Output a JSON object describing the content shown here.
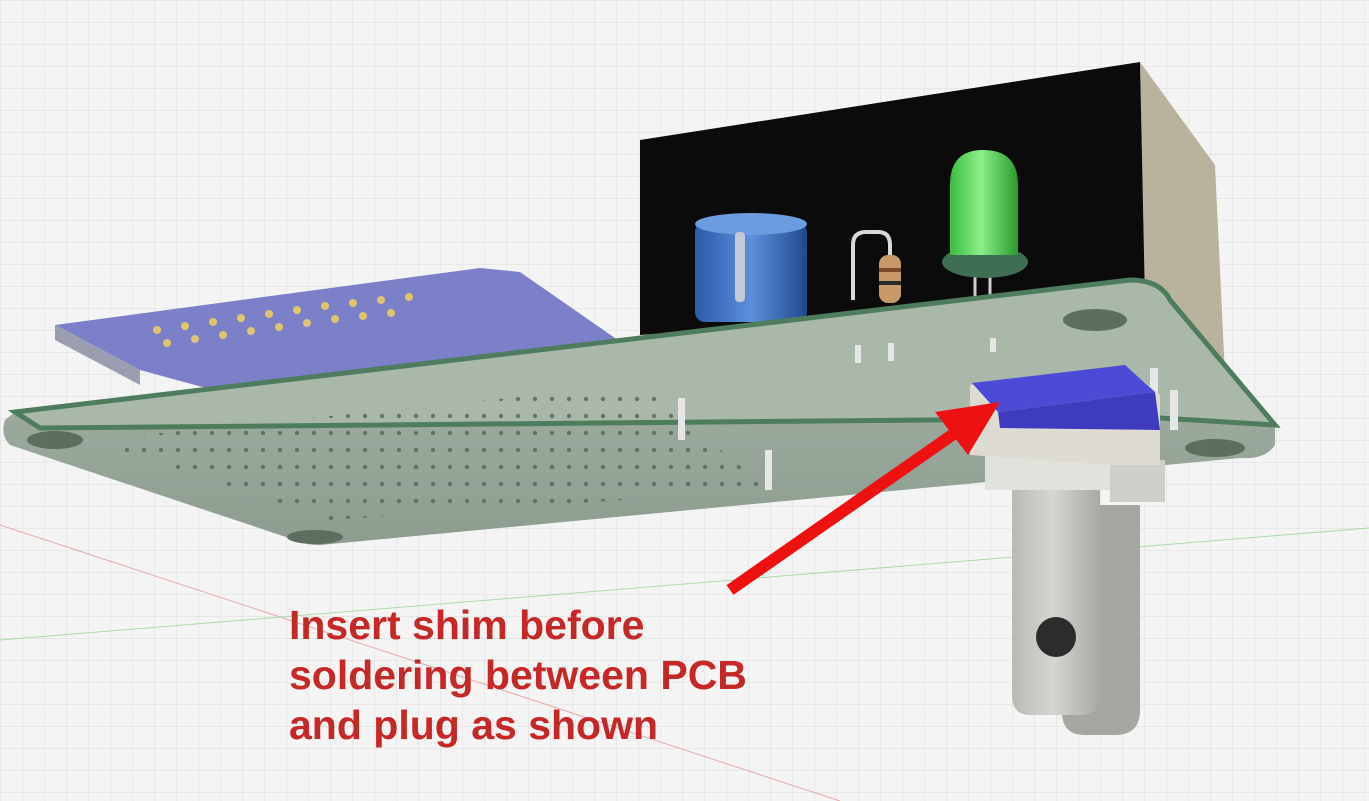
{
  "annotation": {
    "lines": [
      "Insert shim before",
      "soldering between PCB",
      "and plug as shown"
    ],
    "text_color": "#c62727",
    "arrow_color": "#ee1111"
  },
  "colors": {
    "background": "#f4f4f4",
    "grid": "#d9d9d9",
    "pcb": "#9aaa9c",
    "pcb_edge": "#4e7d5e",
    "enclosure": "#0b0b0b",
    "capacitor": "#3a6fc0",
    "led": "#48d24a",
    "connector_board": "#7c80c8",
    "shim": "#4d4ad6",
    "plug": "#c9c9c4"
  }
}
